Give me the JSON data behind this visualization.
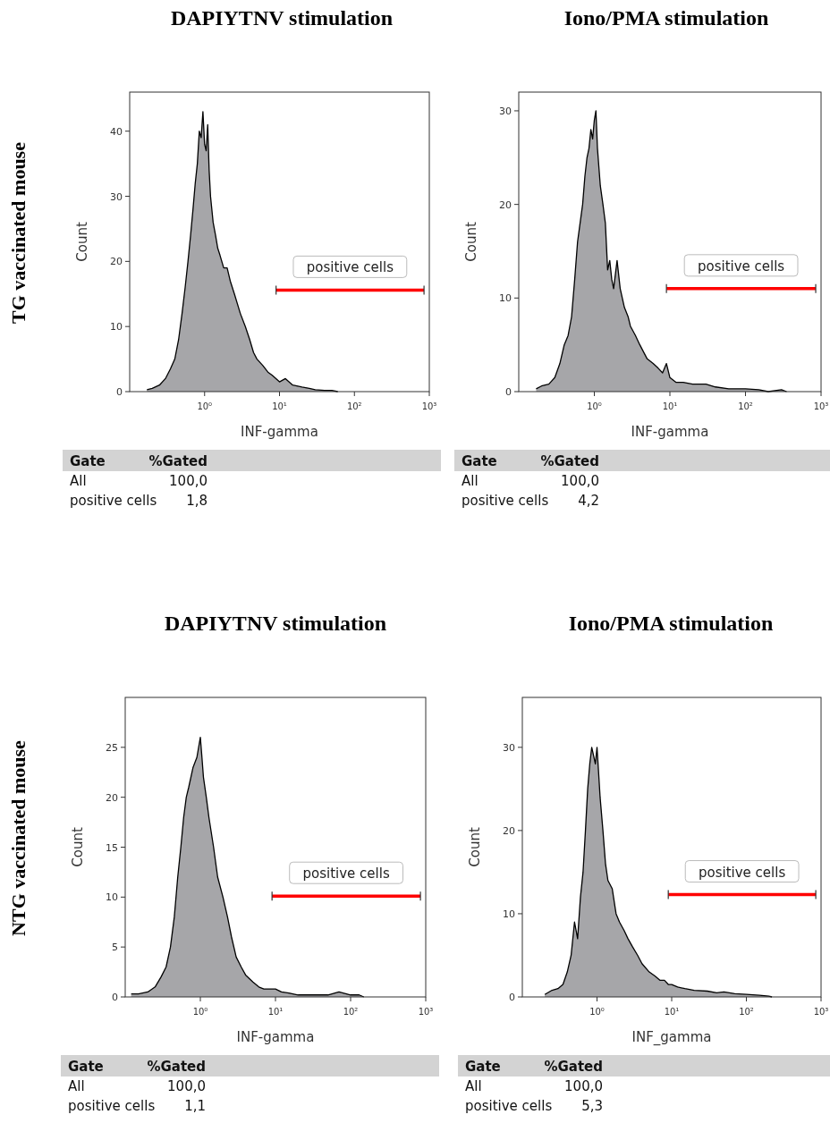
{
  "chart_data": [
    {
      "type": "area",
      "title": "DAPIYTNV stimulation",
      "subtitle": "TG vaccinated mouse",
      "xlabel": "INF-gamma",
      "ylabel": "Count",
      "log": "x",
      "xlim": [
        0.1,
        1000
      ],
      "xticks": [
        {
          "value": 1,
          "label": "10⁰"
        },
        {
          "value": 10,
          "label": "10¹"
        },
        {
          "value": 100,
          "label": "10²"
        },
        {
          "value": 1000,
          "label": "10³"
        }
      ],
      "ylim": [
        0,
        46
      ],
      "yticks": [
        0,
        10,
        20,
        30,
        40
      ],
      "series": [
        {
          "color": "#a6a6a9",
          "x": [
            0.17,
            0.2,
            0.25,
            0.3,
            0.35,
            0.4,
            0.45,
            0.5,
            0.55,
            0.6,
            0.65,
            0.7,
            0.75,
            0.8,
            0.85,
            0.9,
            0.95,
            1.0,
            1.05,
            1.1,
            1.15,
            1.2,
            1.3,
            1.4,
            1.5,
            1.6,
            1.8,
            2.0,
            2.2,
            2.5,
            3,
            3.5,
            4,
            4.5,
            5,
            6,
            7,
            8,
            10,
            12,
            15,
            20,
            25,
            30,
            40,
            50,
            60
          ],
          "values": [
            0.3,
            0.5,
            1,
            2,
            3.5,
            5,
            8,
            12,
            16,
            20,
            24,
            28,
            32,
            35,
            40,
            39,
            43,
            38,
            37,
            41,
            34,
            30,
            26,
            24,
            22,
            21,
            19,
            19,
            17,
            15,
            12,
            10,
            8,
            6,
            5,
            4,
            3,
            2.5,
            1.5,
            2,
            1,
            0.7,
            0.5,
            0.3,
            0.2,
            0.2,
            0
          ]
        },
        {
          "type": "line",
          "name": "positive cells",
          "color": "#ff0000",
          "x": [
            9,
            850
          ],
          "values": [
            15.6,
            15.6
          ]
        }
      ],
      "annotations": [
        "Gate",
        "%Gated",
        "All",
        "100,0",
        "positive cells",
        "1,8"
      ]
    },
    {
      "type": "area",
      "title": "Iono/PMA stimulation",
      "xlabel": "INF-gamma",
      "ylabel": "Count",
      "log": "x",
      "xlim": [
        0.1,
        1000
      ],
      "xticks": [
        {
          "value": 1,
          "label": "10⁰"
        },
        {
          "value": 10,
          "label": "10¹"
        },
        {
          "value": 100,
          "label": "10²"
        },
        {
          "value": 1000,
          "label": "10³"
        }
      ],
      "ylim": [
        0,
        32
      ],
      "yticks": [
        0,
        10,
        20,
        30
      ],
      "series": [
        {
          "color": "#a6a6a9",
          "x": [
            0.17,
            0.2,
            0.25,
            0.3,
            0.35,
            0.4,
            0.45,
            0.5,
            0.55,
            0.6,
            0.7,
            0.75,
            0.8,
            0.85,
            0.9,
            0.95,
            1.0,
            1.05,
            1.1,
            1.2,
            1.3,
            1.4,
            1.5,
            1.6,
            1.7,
            1.8,
            2.0,
            2.2,
            2.5,
            2.8,
            3,
            3.5,
            4,
            5,
            6,
            7,
            8,
            9,
            10,
            12,
            15,
            20,
            30,
            40,
            60,
            100,
            150,
            200,
            300,
            350
          ],
          "values": [
            0.3,
            0.6,
            0.8,
            1.5,
            3,
            5,
            6,
            8,
            12,
            16,
            20,
            23,
            25,
            26,
            28,
            27,
            29,
            30,
            26,
            22,
            20,
            18,
            13,
            14,
            12,
            11,
            14,
            11,
            9,
            8,
            7,
            6,
            5,
            3.5,
            3,
            2.5,
            2,
            3,
            1.5,
            1,
            1,
            0.8,
            0.8,
            0.5,
            0.3,
            0.3,
            0.2,
            0,
            0.2,
            0
          ]
        },
        {
          "type": "line",
          "name": "positive cells",
          "color": "#ff0000",
          "x": [
            9,
            850
          ],
          "values": [
            11,
            11
          ]
        }
      ],
      "annotations": [
        "Gate",
        "%Gated",
        "All",
        "100,0",
        "positive cells",
        "4,2"
      ]
    },
    {
      "type": "area",
      "title": "DAPIYTNV stimulation",
      "subtitle": "NTG vaccinated mouse",
      "xlabel": "INF-gamma",
      "ylabel": "Count",
      "log": "x",
      "xlim": [
        0.1,
        1000
      ],
      "xticks": [
        {
          "value": 1,
          "label": "10⁰"
        },
        {
          "value": 10,
          "label": "10¹"
        },
        {
          "value": 100,
          "label": "10²"
        },
        {
          "value": 1000,
          "label": "10³"
        }
      ],
      "ylim": [
        0,
        30
      ],
      "yticks": [
        0,
        5,
        10,
        15,
        20,
        25
      ],
      "series": [
        {
          "color": "#a6a6a9",
          "x": [
            0.12,
            0.15,
            0.2,
            0.25,
            0.3,
            0.35,
            0.4,
            0.45,
            0.5,
            0.55,
            0.6,
            0.65,
            0.7,
            0.8,
            0.9,
            1.0,
            1.05,
            1.1,
            1.2,
            1.3,
            1.5,
            1.7,
            2,
            2.3,
            2.6,
            3,
            3.5,
            4,
            5,
            6,
            7,
            9,
            10,
            12,
            15,
            20,
            30,
            50,
            70,
            100,
            130,
            150
          ],
          "values": [
            0.3,
            0.3,
            0.5,
            1,
            2,
            3,
            5,
            8,
            12,
            15,
            18,
            20,
            21,
            23,
            24,
            26,
            24,
            22,
            20,
            18,
            15,
            12,
            10,
            8,
            6,
            4,
            3,
            2.2,
            1.5,
            1,
            0.8,
            0.8,
            0.8,
            0.5,
            0.4,
            0.2,
            0.2,
            0.2,
            0.5,
            0.2,
            0.2,
            0
          ]
        },
        {
          "type": "line",
          "name": "positive cells",
          "color": "#ff0000",
          "x": [
            9,
            850
          ],
          "values": [
            10.1,
            10.1
          ]
        }
      ],
      "annotations": [
        "Gate",
        "%Gated",
        "All",
        "100,0",
        "positive cells",
        "1,1"
      ]
    },
    {
      "type": "area",
      "title": "Iono/PMA stimulation",
      "xlabel": "INF_gamma",
      "ylabel": "Count",
      "log": "x",
      "xlim": [
        0.1,
        1000
      ],
      "xticks": [
        {
          "value": 1,
          "label": "10⁰"
        },
        {
          "value": 10,
          "label": "10¹"
        },
        {
          "value": 100,
          "label": "10²"
        },
        {
          "value": 1000,
          "label": "10³"
        }
      ],
      "ylim": [
        0,
        36
      ],
      "yticks": [
        0,
        10,
        20,
        30
      ],
      "series": [
        {
          "color": "#a6a6a9",
          "x": [
            0.2,
            0.25,
            0.3,
            0.35,
            0.4,
            0.45,
            0.5,
            0.55,
            0.6,
            0.65,
            0.7,
            0.75,
            0.8,
            0.85,
            0.9,
            0.95,
            1.0,
            1.05,
            1.1,
            1.2,
            1.3,
            1.4,
            1.6,
            1.8,
            2.0,
            2.3,
            2.6,
            3,
            3.5,
            4,
            5,
            6,
            7,
            8,
            9,
            10,
            12,
            15,
            20,
            30,
            40,
            50,
            70,
            100,
            150,
            200,
            220
          ],
          "values": [
            0.3,
            0.8,
            1,
            1.5,
            3,
            5,
            9,
            7,
            12,
            15,
            20,
            25,
            28,
            30,
            29,
            28,
            30,
            27,
            24,
            20,
            16,
            14,
            13,
            10,
            9,
            8,
            7,
            6,
            5,
            4,
            3,
            2.5,
            2,
            2,
            1.5,
            1.5,
            1.2,
            1,
            0.8,
            0.7,
            0.5,
            0.6,
            0.4,
            0.3,
            0.2,
            0.1,
            0
          ]
        },
        {
          "type": "line",
          "name": "positive cells",
          "color": "#ff0000",
          "x": [
            9,
            850
          ],
          "values": [
            12.3,
            12.3
          ]
        }
      ],
      "annotations": [
        "Gate",
        "%Gated",
        "All",
        "100,0",
        "positive cells",
        "5,3"
      ]
    }
  ]
}
